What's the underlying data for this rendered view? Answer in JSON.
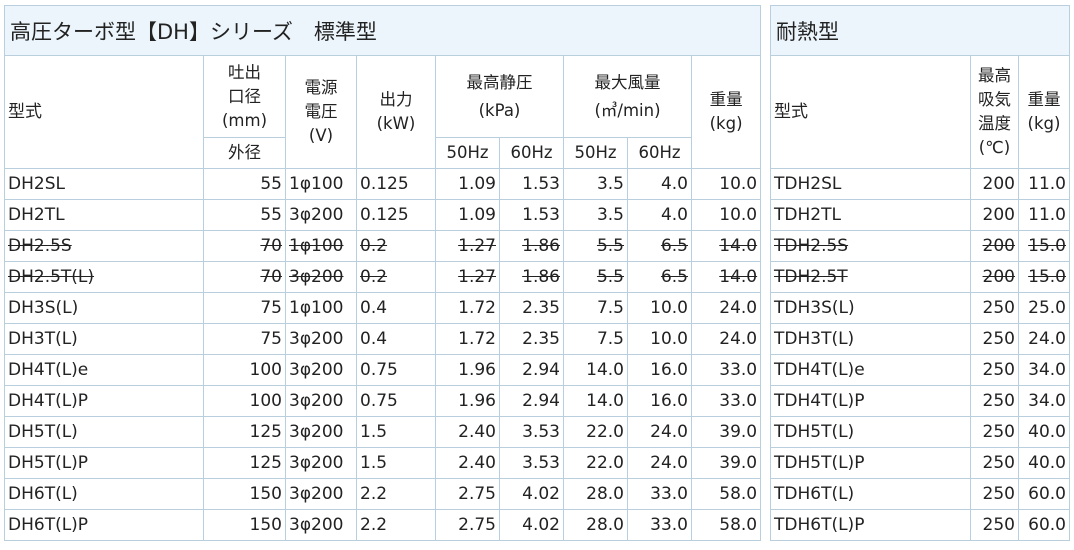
{
  "main": {
    "title": "高圧ターボ型【DH】シリーズ　標準型",
    "headers": {
      "model": "型式",
      "outlet_line1": "吐出",
      "outlet_line2": "口径",
      "outlet_unit": "(mm)",
      "outlet_sub": "外径",
      "power_line1": "電源",
      "power_line2": "電圧",
      "power_unit": "(V)",
      "output": "出力",
      "output_unit": "(kW)",
      "pressure": "最高静圧",
      "pressure_unit": "(kPa)",
      "flow": "最大風量",
      "flow_unit": "(㎥/min)",
      "weight": "重量",
      "weight_unit": "(kg)",
      "hz50": "50Hz",
      "hz60": "60Hz"
    },
    "rows": [
      {
        "model": "DH2SL",
        "outlet": "55",
        "power": "1φ100",
        "output": "0.125",
        "p50": "1.09",
        "p60": "1.53",
        "f50": "3.5",
        "f60": "4.0",
        "weight": "10.0"
      },
      {
        "model": "DH2TL",
        "outlet": "55",
        "power": "3φ200",
        "output": "0.125",
        "p50": "1.09",
        "p60": "1.53",
        "f50": "3.5",
        "f60": "4.0",
        "weight": "10.0"
      },
      {
        "model": "DH2.5S",
        "outlet": "70",
        "power": "1φ100",
        "output": "0.2",
        "p50": "1.27",
        "p60": "1.86",
        "f50": "5.5",
        "f60": "6.5",
        "weight": "14.0"
      },
      {
        "model": "DH2.5T(L)",
        "outlet": "70",
        "power": "3φ200",
        "output": "0.2",
        "p50": "1.27",
        "p60": "1.86",
        "f50": "5.5",
        "f60": "6.5",
        "weight": "14.0"
      },
      {
        "model": "DH3S(L)",
        "outlet": "75",
        "power": "1φ100",
        "output": "0.4",
        "p50": "1.72",
        "p60": "2.35",
        "f50": "7.5",
        "f60": "10.0",
        "weight": "24.0"
      },
      {
        "model": "DH3T(L)",
        "outlet": "75",
        "power": "3φ200",
        "output": "0.4",
        "p50": "1.72",
        "p60": "2.35",
        "f50": "7.5",
        "f60": "10.0",
        "weight": "24.0"
      },
      {
        "model": "DH4T(L)e",
        "outlet": "100",
        "power": "3φ200",
        "output": "0.75",
        "p50": "1.96",
        "p60": "2.94",
        "f50": "14.0",
        "f60": "16.0",
        "weight": "33.0"
      },
      {
        "model": "DH4T(L)P",
        "outlet": "100",
        "power": "3φ200",
        "output": "0.75",
        "p50": "1.96",
        "p60": "2.94",
        "f50": "14.0",
        "f60": "16.0",
        "weight": "33.0"
      },
      {
        "model": "DH5T(L)",
        "outlet": "125",
        "power": "3φ200",
        "output": "1.5",
        "p50": "2.40",
        "p60": "3.53",
        "f50": "22.0",
        "f60": "24.0",
        "weight": "39.0"
      },
      {
        "model": "DH5T(L)P",
        "outlet": "125",
        "power": "3φ200",
        "output": "1.5",
        "p50": "2.40",
        "p60": "3.53",
        "f50": "22.0",
        "f60": "24.0",
        "weight": "39.0"
      },
      {
        "model": "DH6T(L)",
        "outlet": "150",
        "power": "3φ200",
        "output": "2.2",
        "p50": "2.75",
        "p60": "4.02",
        "f50": "28.0",
        "f60": "33.0",
        "weight": "58.0"
      },
      {
        "model": "DH6T(L)P",
        "outlet": "150",
        "power": "3φ200",
        "output": "2.2",
        "p50": "2.75",
        "p60": "4.02",
        "f50": "28.0",
        "f60": "33.0",
        "weight": "58.0"
      }
    ],
    "discontinued_rows": [
      2,
      3
    ]
  },
  "heat": {
    "title": "耐熱型",
    "headers": {
      "model": "型式",
      "temp_line1": "最高",
      "temp_line2": "吸気",
      "temp_line3": "温度",
      "temp_unit": "(℃)",
      "weight": "重量",
      "weight_unit": "(kg)"
    },
    "rows": [
      {
        "model": "TDH2SL",
        "temp": "200",
        "weight": "11.0"
      },
      {
        "model": "TDH2TL",
        "temp": "200",
        "weight": "11.0"
      },
      {
        "model": "TDH2.5S",
        "temp": "200",
        "weight": "15.0"
      },
      {
        "model": "TDH2.5T",
        "temp": "200",
        "weight": "15.0"
      },
      {
        "model": "TDH3S(L)",
        "temp": "250",
        "weight": "25.0"
      },
      {
        "model": "TDH3T(L)",
        "temp": "250",
        "weight": "24.0"
      },
      {
        "model": "TDH4T(L)e",
        "temp": "250",
        "weight": "34.0"
      },
      {
        "model": "TDH4T(L)P",
        "temp": "250",
        "weight": "34.0"
      },
      {
        "model": "TDH5T(L)",
        "temp": "250",
        "weight": "40.0"
      },
      {
        "model": "TDH5T(L)P",
        "temp": "250",
        "weight": "40.0"
      },
      {
        "model": "TDH6T(L)",
        "temp": "250",
        "weight": "60.0"
      },
      {
        "model": "TDH6T(L)P",
        "temp": "250",
        "weight": "60.0"
      }
    ],
    "discontinued_rows": [
      2,
      3
    ]
  }
}
